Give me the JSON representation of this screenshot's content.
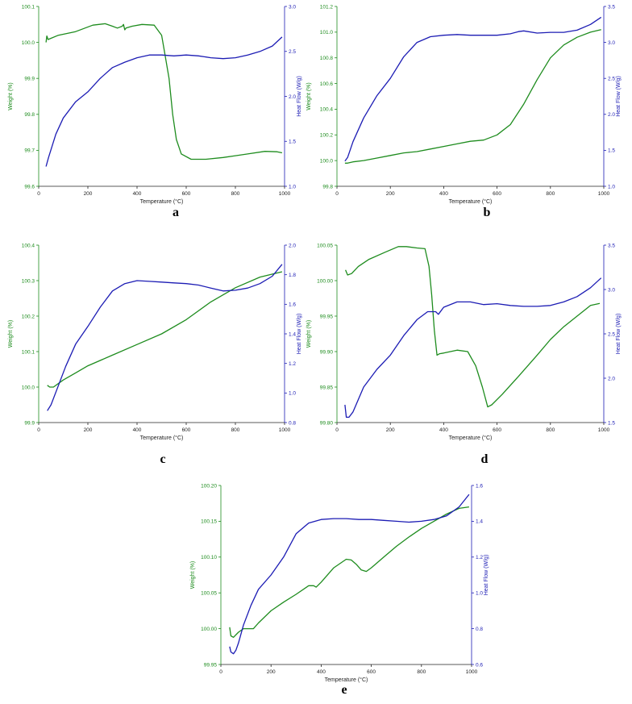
{
  "colors": {
    "weight": "#1e8c1e",
    "heat": "#1c1cb4",
    "axis": "#222222"
  },
  "chart_data": [
    {
      "panel": "a",
      "type": "line",
      "xlabel": "Temperature (°C)",
      "y1label": "Weight (%)",
      "y2label": "Heat Flow (W/g)",
      "xlim": [
        0,
        1000
      ],
      "xticks": [
        "0",
        "200",
        "400",
        "600",
        "800",
        "1000"
      ],
      "y1lim": [
        99.6,
        100.1
      ],
      "y1ticks": [
        "99.6",
        "99.7",
        "99.8",
        "99.9",
        "100.0",
        "100.1"
      ],
      "y2lim": [
        1.0,
        3.0
      ],
      "y2ticks": [
        "1.0",
        "1.5",
        "2.0",
        "2.5",
        "3.0"
      ],
      "grid": false,
      "series": [
        {
          "axis": "left",
          "x": [
            30,
            33,
            38,
            45,
            80,
            150,
            220,
            270,
            300,
            320,
            340,
            345,
            350,
            355,
            380,
            420,
            470,
            500,
            510,
            530,
            545,
            560,
            580,
            620,
            680,
            750,
            800,
            850,
            920,
            970,
            990
          ],
          "y": [
            100.0,
            100.018,
            100.008,
            100.01,
            100.02,
            100.03,
            100.048,
            100.052,
            100.045,
            100.04,
            100.045,
            100.05,
            100.035,
            100.04,
            100.045,
            100.05,
            100.048,
            100.02,
            99.98,
            99.9,
            99.8,
            99.73,
            99.69,
            99.675,
            99.675,
            99.68,
            99.685,
            99.69,
            99.697,
            99.696,
            99.693
          ]
        },
        {
          "axis": "right",
          "x": [
            30,
            40,
            70,
            100,
            150,
            200,
            250,
            300,
            350,
            400,
            450,
            500,
            550,
            600,
            650,
            700,
            750,
            800,
            850,
            900,
            950,
            990
          ],
          "y": [
            1.22,
            1.32,
            1.58,
            1.76,
            1.94,
            2.05,
            2.2,
            2.32,
            2.38,
            2.43,
            2.46,
            2.46,
            2.45,
            2.46,
            2.45,
            2.43,
            2.42,
            2.43,
            2.46,
            2.5,
            2.56,
            2.66
          ]
        }
      ]
    },
    {
      "panel": "b",
      "type": "line",
      "xlabel": "Temperature (°C)",
      "y1label": "Weight (%)",
      "y2label": "Heat Flow (W/g)",
      "xlim": [
        0,
        1000
      ],
      "xticks": [
        "0",
        "200",
        "400",
        "600",
        "800",
        "1000"
      ],
      "y1lim": [
        99.8,
        101.2
      ],
      "y1ticks": [
        "99.8",
        "100.0",
        "100.2",
        "100.4",
        "100.6",
        "100.8",
        "101.0",
        "101.2"
      ],
      "y2lim": [
        1.0,
        3.5
      ],
      "y2ticks": [
        "1.0",
        "1.5",
        "2.0",
        "2.5",
        "3.0",
        "3.5"
      ],
      "grid": false,
      "series": [
        {
          "axis": "left",
          "x": [
            30,
            40,
            60,
            100,
            150,
            200,
            250,
            300,
            350,
            400,
            450,
            500,
            550,
            600,
            650,
            700,
            750,
            800,
            850,
            900,
            950,
            990
          ],
          "y": [
            99.98,
            99.98,
            99.99,
            100.0,
            100.02,
            100.04,
            100.06,
            100.07,
            100.09,
            100.11,
            100.13,
            100.15,
            100.16,
            100.2,
            100.28,
            100.44,
            100.63,
            100.8,
            100.9,
            100.96,
            101.0,
            101.02
          ]
        },
        {
          "axis": "right",
          "x": [
            30,
            40,
            60,
            100,
            150,
            200,
            250,
            300,
            350,
            400,
            450,
            500,
            550,
            600,
            650,
            680,
            700,
            750,
            800,
            850,
            900,
            950,
            990
          ],
          "y": [
            1.35,
            1.4,
            1.62,
            1.95,
            2.26,
            2.5,
            2.8,
            3.0,
            3.08,
            3.1,
            3.11,
            3.1,
            3.1,
            3.1,
            3.12,
            3.15,
            3.16,
            3.13,
            3.14,
            3.14,
            3.17,
            3.25,
            3.35
          ]
        }
      ]
    },
    {
      "panel": "c",
      "type": "line",
      "xlabel": "Temperature (°C)",
      "y1label": "Weight (%)",
      "y2label": "Heat Flow (W/g)",
      "xlim": [
        0,
        1000
      ],
      "xticks": [
        "0",
        "200",
        "400",
        "600",
        "800",
        "1000"
      ],
      "y1lim": [
        99.9,
        100.4
      ],
      "y1ticks": [
        "99.9",
        "100.0",
        "100.1",
        "100.2",
        "100.3",
        "100.4"
      ],
      "y2lim": [
        0.8,
        2.0
      ],
      "y2ticks": [
        "0.8",
        "1.0",
        "1.2",
        "1.4",
        "1.6",
        "1.8",
        "2.0"
      ],
      "grid": false,
      "series": [
        {
          "axis": "left",
          "x": [
            35,
            45,
            60,
            100,
            150,
            200,
            300,
            400,
            500,
            600,
            700,
            800,
            900,
            990
          ],
          "y": [
            100.005,
            100.0,
            100.0,
            100.02,
            100.04,
            100.06,
            100.09,
            100.12,
            100.15,
            100.19,
            100.24,
            100.28,
            100.31,
            100.325
          ]
        },
        {
          "axis": "right",
          "x": [
            35,
            50,
            80,
            110,
            150,
            200,
            250,
            300,
            350,
            400,
            450,
            500,
            550,
            600,
            650,
            700,
            750,
            800,
            850,
            900,
            950,
            990
          ],
          "y": [
            0.88,
            0.92,
            1.05,
            1.18,
            1.33,
            1.45,
            1.58,
            1.69,
            1.74,
            1.76,
            1.755,
            1.75,
            1.745,
            1.74,
            1.73,
            1.71,
            1.69,
            1.695,
            1.71,
            1.74,
            1.79,
            1.87
          ]
        }
      ]
    },
    {
      "panel": "d",
      "type": "line",
      "xlabel": "Temperature (°C)",
      "y1label": "Weight (%)",
      "y2label": "Heat Flow (W/g)",
      "xlim": [
        0,
        1000
      ],
      "xticks": [
        "0",
        "200",
        "400",
        "600",
        "800",
        "1000"
      ],
      "y1lim": [
        99.8,
        100.05
      ],
      "y1ticks": [
        "99.80",
        "99.85",
        "99.90",
        "99.95",
        "100.00",
        "100.05"
      ],
      "y2lim": [
        1.5,
        3.5
      ],
      "y2ticks": [
        "1.5",
        "2.0",
        "2.5",
        "3.0",
        "3.5"
      ],
      "grid": false,
      "series": [
        {
          "axis": "left",
          "x": [
            32,
            40,
            55,
            80,
            120,
            180,
            230,
            260,
            300,
            330,
            345,
            355,
            365,
            375,
            385,
            400,
            450,
            490,
            520,
            545,
            565,
            580,
            620,
            680,
            750,
            800,
            850,
            900,
            950,
            985
          ],
          "y": [
            100.015,
            100.008,
            100.01,
            100.02,
            100.03,
            100.04,
            100.048,
            100.048,
            100.046,
            100.045,
            100.02,
            99.98,
            99.93,
            99.895,
            99.897,
            99.898,
            99.902,
            99.9,
            99.88,
            99.85,
            99.822,
            99.825,
            99.84,
            99.865,
            99.895,
            99.917,
            99.935,
            99.95,
            99.965,
            99.968
          ]
        },
        {
          "axis": "right",
          "x": [
            30,
            35,
            45,
            60,
            100,
            150,
            200,
            250,
            300,
            340,
            370,
            380,
            400,
            450,
            500,
            550,
            600,
            650,
            700,
            750,
            800,
            850,
            900,
            950,
            990
          ],
          "y": [
            1.7,
            1.56,
            1.56,
            1.62,
            1.9,
            2.1,
            2.26,
            2.48,
            2.66,
            2.75,
            2.75,
            2.72,
            2.8,
            2.86,
            2.86,
            2.83,
            2.84,
            2.82,
            2.81,
            2.81,
            2.82,
            2.86,
            2.92,
            3.02,
            3.13
          ]
        }
      ]
    },
    {
      "panel": "e",
      "type": "line",
      "xlabel": "Temperature (°C)",
      "y1label": "Weight (%)",
      "y2label": "Heat Flow (W/g)",
      "xlim": [
        0,
        1000
      ],
      "xticks": [
        "0",
        "200",
        "400",
        "600",
        "800",
        "1000"
      ],
      "y1lim": [
        99.95,
        100.2
      ],
      "y1ticks": [
        "99.95",
        "100.00",
        "100.05",
        "100.10",
        "100.15",
        "100.20"
      ],
      "y2lim": [
        0.6,
        1.6
      ],
      "y2ticks": [
        "0.6",
        "0.8",
        "1.0",
        "1.2",
        "1.4",
        "1.6"
      ],
      "grid": false,
      "series": [
        {
          "axis": "left",
          "x": [
            35,
            40,
            50,
            70,
            90,
            110,
            130,
            150,
            200,
            250,
            300,
            350,
            370,
            380,
            400,
            450,
            500,
            520,
            540,
            560,
            580,
            600,
            650,
            700,
            750,
            800,
            850,
            900,
            950,
            990
          ],
          "y": [
            100.002,
            99.99,
            99.988,
            99.995,
            100.0,
            100.0,
            100.0,
            100.008,
            100.025,
            100.037,
            100.048,
            100.06,
            100.06,
            100.058,
            100.065,
            100.085,
            100.097,
            100.096,
            100.09,
            100.082,
            100.08,
            100.085,
            100.1,
            100.115,
            100.128,
            100.14,
            100.15,
            100.16,
            100.168,
            100.17
          ]
        },
        {
          "axis": "right",
          "x": [
            35,
            40,
            50,
            60,
            70,
            90,
            120,
            150,
            200,
            250,
            300,
            350,
            400,
            450,
            500,
            550,
            600,
            650,
            700,
            750,
            800,
            850,
            900,
            950,
            990
          ],
          "y": [
            0.7,
            0.67,
            0.66,
            0.68,
            0.72,
            0.82,
            0.93,
            1.02,
            1.1,
            1.2,
            1.33,
            1.39,
            1.41,
            1.415,
            1.415,
            1.41,
            1.41,
            1.405,
            1.4,
            1.395,
            1.4,
            1.41,
            1.43,
            1.48,
            1.55
          ]
        }
      ]
    }
  ]
}
